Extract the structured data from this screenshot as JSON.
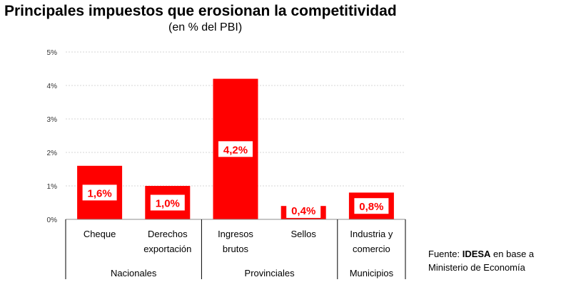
{
  "chart_data": {
    "type": "bar",
    "title": "Principales impuestos que erosionan la competitividad",
    "subtitle": "(en % del PBI)",
    "categories": [
      [
        "Cheque"
      ],
      [
        "Derechos",
        "exportación"
      ],
      [
        "Ingresos",
        "brutos"
      ],
      [
        "Sellos"
      ],
      [
        "Industria y",
        "comercio"
      ]
    ],
    "values": [
      1.6,
      1.0,
      4.2,
      0.4,
      0.8
    ],
    "data_labels": [
      "1,6%",
      "1,0%",
      "4,2%",
      "0,4%",
      "0,8%"
    ],
    "groups": [
      {
        "label": "Nacionales",
        "from": 0,
        "to": 1
      },
      {
        "label": "Provinciales",
        "from": 2,
        "to": 3
      },
      {
        "label": "Municipios",
        "from": 4,
        "to": 4
      }
    ],
    "ylim": [
      0,
      5
    ],
    "yticks": [
      0,
      1,
      2,
      3,
      4,
      5
    ],
    "ytick_labels": [
      "0%",
      "1%",
      "2%",
      "3%",
      "4%",
      "5%"
    ],
    "grid": true,
    "bar_color": "#ff0000",
    "label_color": "#ff0000",
    "xlabel": "",
    "ylabel": ""
  },
  "source": {
    "prefix": "Fuente: ",
    "org": "IDESA",
    "suffix": " en base a",
    "line2": "Ministerio de Economía"
  }
}
